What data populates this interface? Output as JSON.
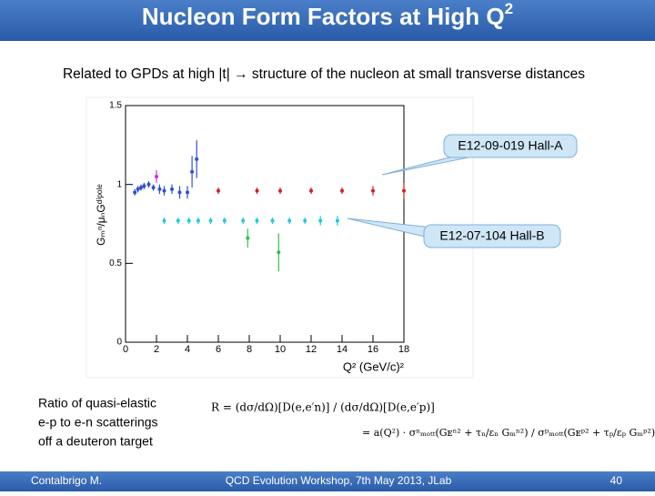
{
  "header": {
    "title": "Nucleon Form Factors at High Q",
    "title_sup": "2"
  },
  "subtitle": "Related to GPDs at high |t| → structure of the nucleon at small transverse distances",
  "chart_data": {
    "type": "scatter",
    "xlabel": "Q² (GeV/c)²",
    "ylabel": "Gₘⁿ/μₙGᵈⁱᵖᵒˡᵉ",
    "xlim": [
      0,
      18
    ],
    "xticks": [
      0,
      2,
      4,
      6,
      8,
      10,
      12,
      14,
      16,
      18
    ],
    "ylim": [
      0,
      1.5
    ],
    "yticks": [
      0,
      0.5,
      1,
      1.5
    ],
    "series": [
      {
        "color": "#3050d0",
        "x": [
          0.6,
          0.8,
          1.0,
          1.2,
          1.5,
          1.8,
          2.2,
          2.5,
          3.0,
          3.5,
          4.0,
          4.3,
          4.6
        ],
        "values": [
          0.95,
          0.97,
          0.98,
          0.99,
          1.0,
          0.98,
          0.97,
          0.96,
          0.97,
          0.95,
          0.95,
          1.08,
          1.16
        ],
        "errors": [
          0.02,
          0.02,
          0.02,
          0.02,
          0.02,
          0.02,
          0.03,
          0.03,
          0.03,
          0.04,
          0.04,
          0.1,
          0.12
        ]
      },
      {
        "color": "#d030d0",
        "x": [
          2.0
        ],
        "values": [
          1.05
        ],
        "errors": [
          0.04
        ]
      },
      {
        "color": "#d02020",
        "x": [
          6,
          8.5,
          10,
          12,
          14,
          16,
          18
        ],
        "values": [
          0.96,
          0.96,
          0.96,
          0.96,
          0.96,
          0.96,
          0.96
        ],
        "errors": [
          0.02,
          0.02,
          0.02,
          0.02,
          0.02,
          0.03,
          0.05
        ]
      },
      {
        "color": "#20c8e0",
        "x": [
          2.5,
          3.4,
          4.1,
          4.7,
          5.5,
          6.4,
          7.6,
          8.5,
          9.5,
          10.6,
          11.6,
          12.6,
          13.7
        ],
        "values": [
          0.77,
          0.77,
          0.77,
          0.77,
          0.77,
          0.77,
          0.77,
          0.77,
          0.77,
          0.77,
          0.77,
          0.77,
          0.77
        ],
        "errors": [
          0.02,
          0.02,
          0.02,
          0.02,
          0.02,
          0.02,
          0.02,
          0.02,
          0.02,
          0.02,
          0.02,
          0.03,
          0.03
        ]
      },
      {
        "color": "#30c050",
        "x": [
          7.9,
          9.9
        ],
        "values": [
          0.66,
          0.57
        ],
        "errors": [
          0.06,
          0.12
        ]
      }
    ]
  },
  "callouts": [
    "E12-09-019 Hall-A",
    "E12-07-104  Hall-B"
  ],
  "caption": [
    "Ratio of quasi-elastic",
    "e-p to e-n scatterings",
    "off a deuteron target"
  ],
  "formula": {
    "left": "R = (dσ/dΩ)[D(e,e′n)] / (dσ/dΩ)[D(e,e′p)]",
    "right": "= a(Q²) · σⁿₘₒₜₜ(Gᴇⁿ² + τₙ/εₙ Gₘⁿ²) / σᵖₘₒₜₜ(Gᴇᵖ² + τₚ/εₚ Gₘᵖ²)"
  },
  "footer": {
    "author": "Contalbrigo M.",
    "event": "QCD Evolution Workshop, 7th May 2013, JLab",
    "page": "40"
  }
}
